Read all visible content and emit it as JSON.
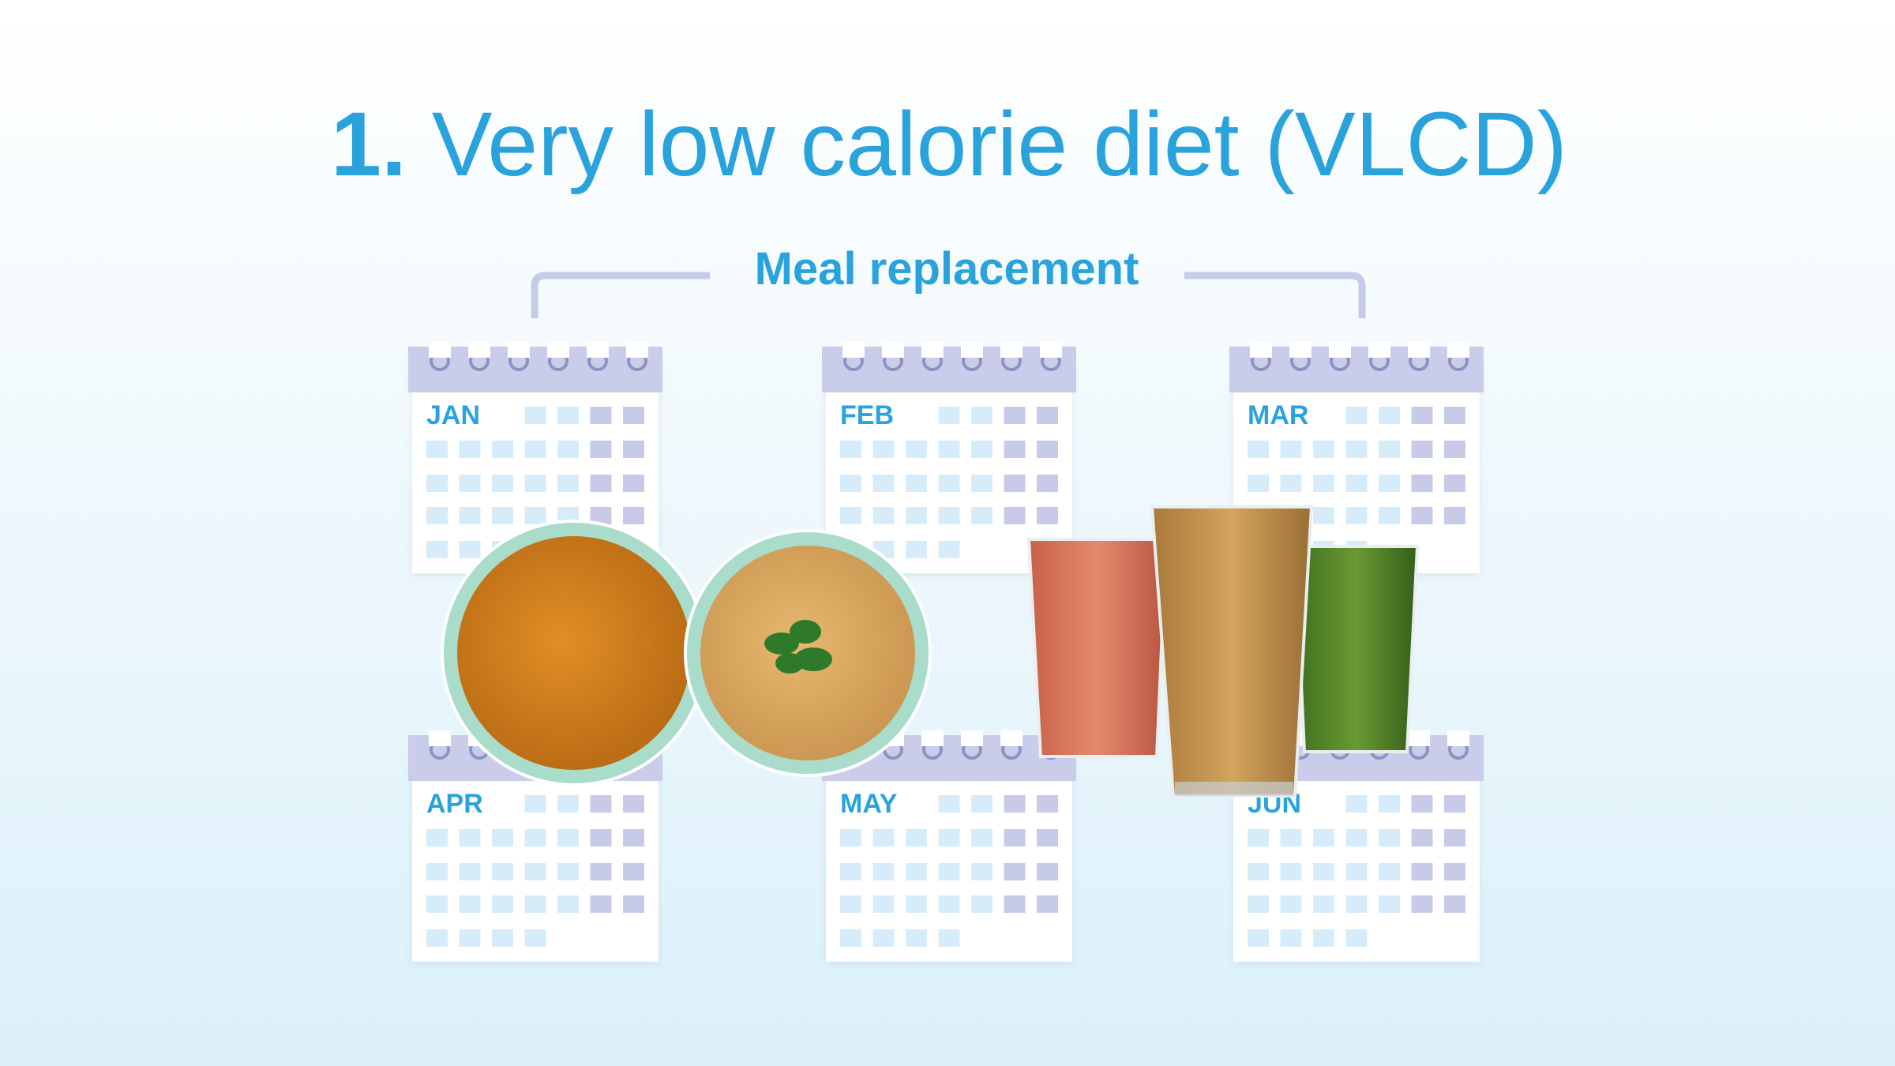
{
  "title": {
    "number": "1.",
    "text": "Very low calorie diet (VLCD)"
  },
  "subtitle": "Meal replacement",
  "calendars": [
    {
      "month": "JAN"
    },
    {
      "month": "FEB"
    },
    {
      "month": "MAR"
    },
    {
      "month": "APR"
    },
    {
      "month": "MAY"
    },
    {
      "month": "JUN"
    }
  ]
}
